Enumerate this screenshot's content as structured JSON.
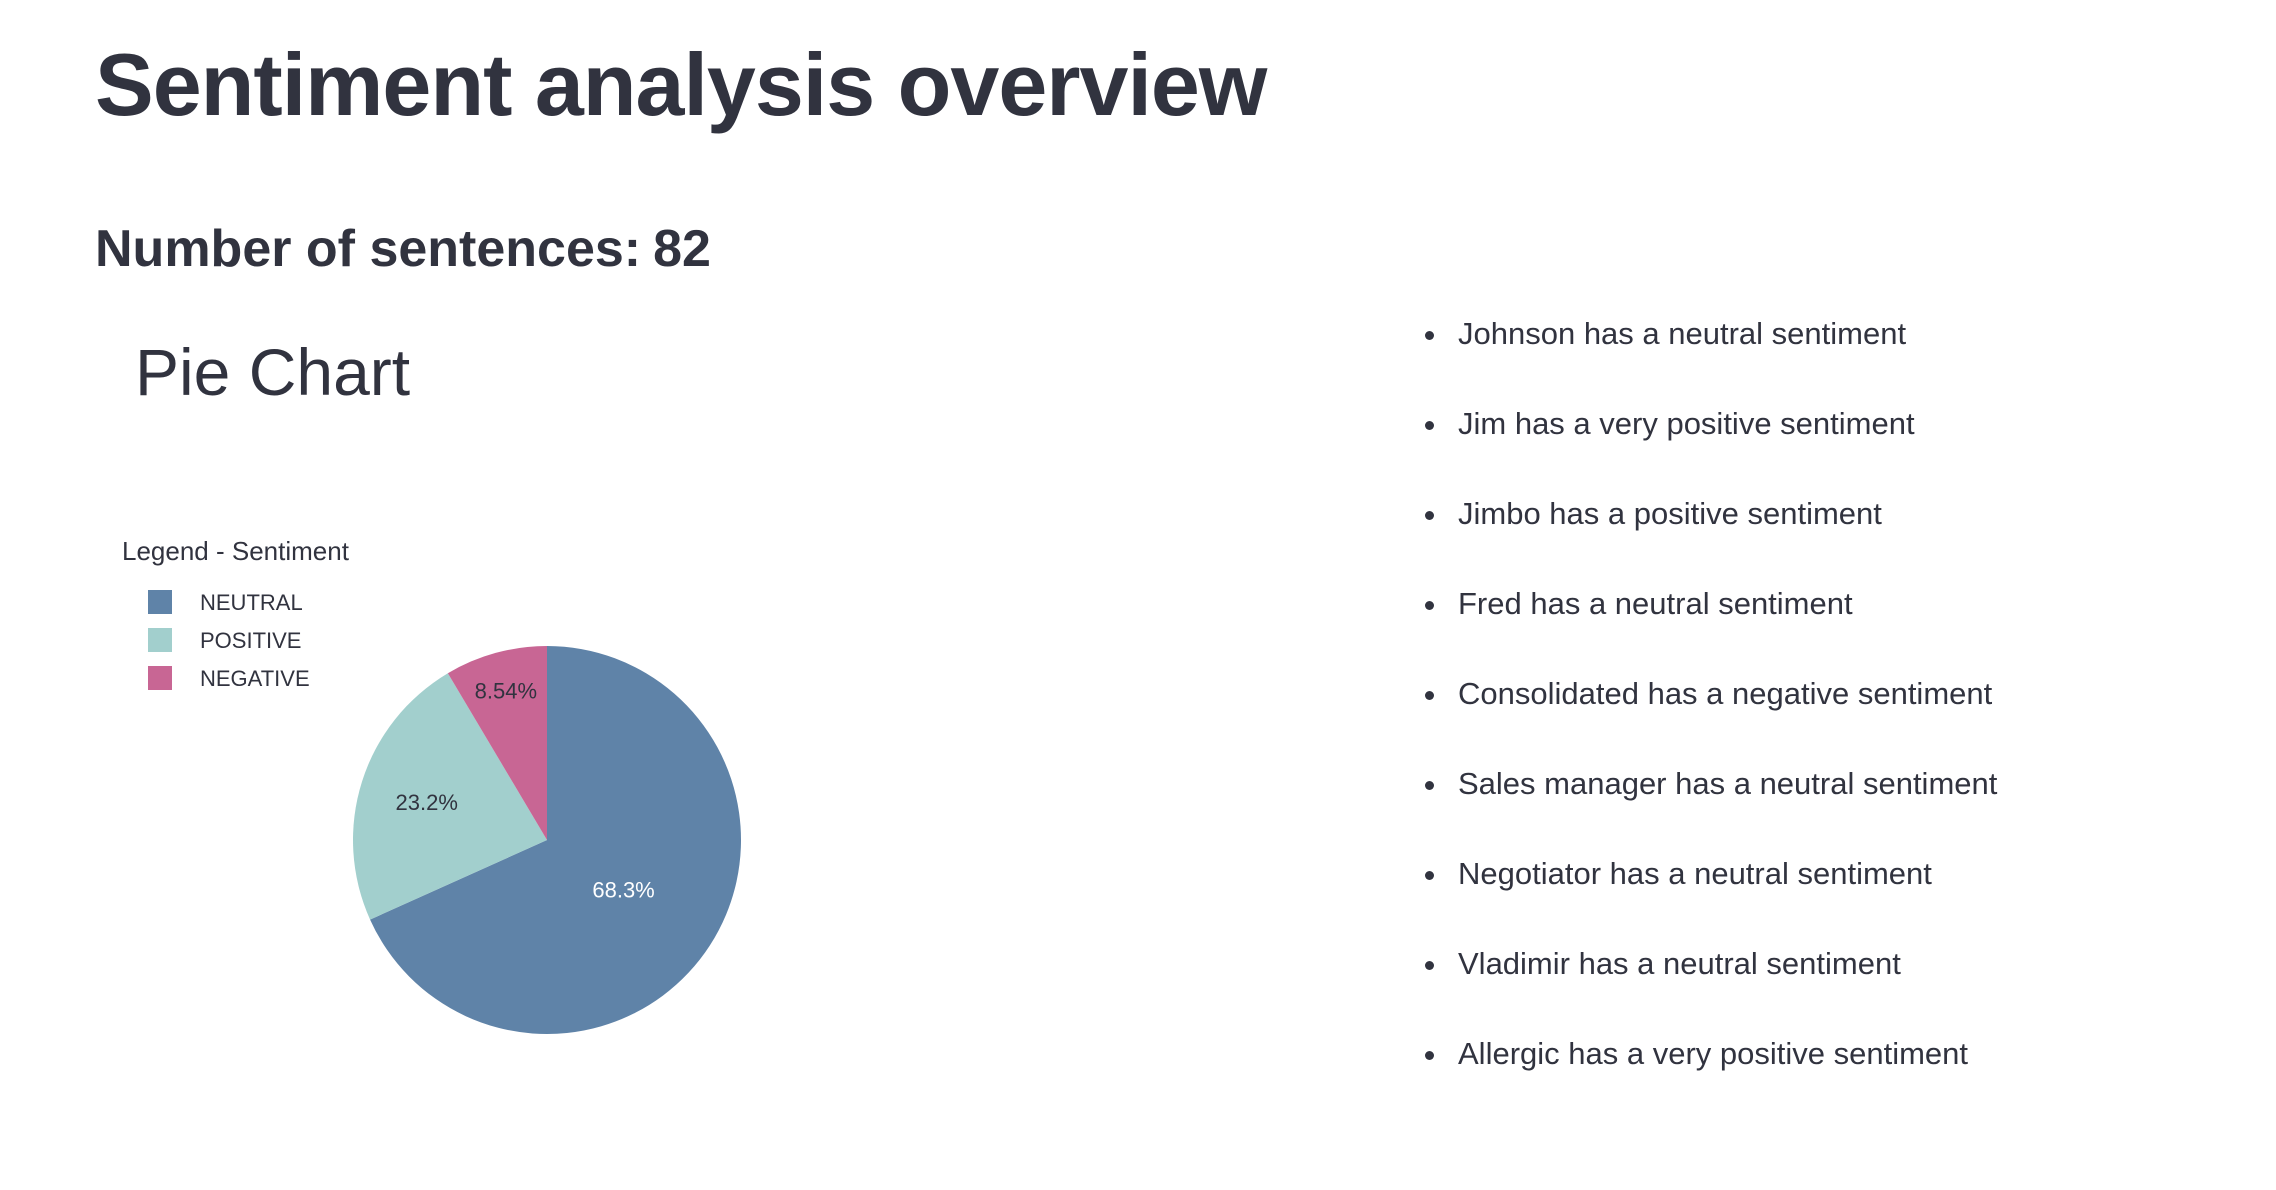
{
  "page": {
    "title": "Sentiment analysis overview",
    "sentence_count_label": "Number of sentences:",
    "sentence_count_value": "82"
  },
  "chart_data": {
    "type": "pie",
    "title": "Pie Chart",
    "legend_title": "Legend - Sentiment",
    "legend_position": "top-left",
    "categories": [
      "NEUTRAL",
      "POSITIVE",
      "NEGATIVE"
    ],
    "values": [
      68.3,
      23.2,
      8.54
    ],
    "labels": [
      "68.3%",
      "23.2%",
      "8.54%"
    ],
    "colors": [
      "#5f83a8",
      "#a2cfcd",
      "#c86694"
    ],
    "label_colors": [
      "#ffffff",
      "#31333f",
      "#31333f"
    ]
  },
  "entities": [
    "Johnson has a neutral sentiment",
    "Jim has a very positive sentiment",
    "Jimbo has a positive sentiment",
    "Fred has a neutral sentiment",
    "Consolidated has a negative sentiment",
    "Sales manager has a neutral sentiment",
    "Negotiator has a neutral sentiment",
    "Vladimir has a neutral sentiment",
    "Allergic has a very positive sentiment"
  ]
}
